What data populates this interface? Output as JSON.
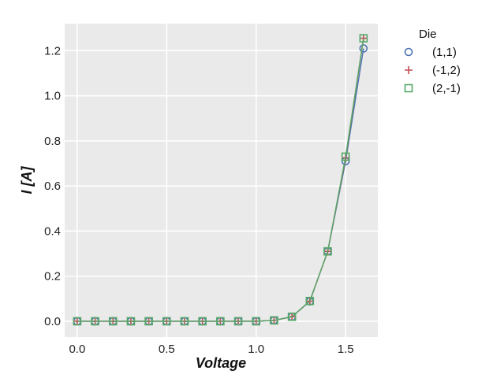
{
  "chart_data": {
    "type": "line",
    "xlabel": "Voltage",
    "ylabel": "I [A]",
    "xlim": [
      -0.07,
      1.68
    ],
    "ylim": [
      -0.07,
      1.32
    ],
    "x_ticks": [
      "0.0",
      "0.5",
      "1.0",
      "1.5"
    ],
    "x_tick_values": [
      0.0,
      0.5,
      1.0,
      1.5
    ],
    "y_ticks": [
      "0.0",
      "0.2",
      "0.4",
      "0.6",
      "0.8",
      "1.0",
      "1.2"
    ],
    "y_tick_values": [
      0.0,
      0.2,
      0.4,
      0.6,
      0.8,
      1.0,
      1.2
    ],
    "grid": true,
    "legend_title": "Die",
    "legend_position": "outside-right-top",
    "series": [
      {
        "name": "(1,1)",
        "marker": "circle",
        "color": "#4c72b0",
        "x": [
          0.0,
          0.1,
          0.2,
          0.3,
          0.4,
          0.5,
          0.6,
          0.7,
          0.8,
          0.9,
          1.0,
          1.1,
          1.2,
          1.3,
          1.4,
          1.5,
          1.6
        ],
        "y": [
          0.0,
          0.0,
          0.0,
          0.0,
          0.0,
          0.0,
          0.0,
          0.0,
          0.0,
          0.0,
          0.0,
          0.004,
          0.02,
          0.088,
          0.31,
          0.71,
          1.21
        ]
      },
      {
        "name": "(-1,2)",
        "marker": "plus",
        "color": "#c44e52",
        "x": [
          0.0,
          0.1,
          0.2,
          0.3,
          0.4,
          0.5,
          0.6,
          0.7,
          0.8,
          0.9,
          1.0,
          1.1,
          1.2,
          1.3,
          1.4,
          1.5,
          1.6
        ],
        "y": [
          0.0,
          0.0,
          0.0,
          0.0,
          0.0,
          0.0,
          0.0,
          0.0,
          0.0,
          0.0,
          0.0,
          0.004,
          0.02,
          0.089,
          0.31,
          0.725,
          1.255
        ]
      },
      {
        "name": "(2,-1)",
        "marker": "square",
        "color": "#55a868",
        "x": [
          0.0,
          0.1,
          0.2,
          0.3,
          0.4,
          0.5,
          0.6,
          0.7,
          0.8,
          0.9,
          1.0,
          1.1,
          1.2,
          1.3,
          1.4,
          1.5,
          1.6
        ],
        "y": [
          0.0,
          0.0,
          0.0,
          0.0,
          0.0,
          0.0,
          0.0,
          0.0,
          0.0,
          0.0,
          0.0,
          0.004,
          0.02,
          0.09,
          0.31,
          0.73,
          1.255
        ]
      }
    ]
  }
}
